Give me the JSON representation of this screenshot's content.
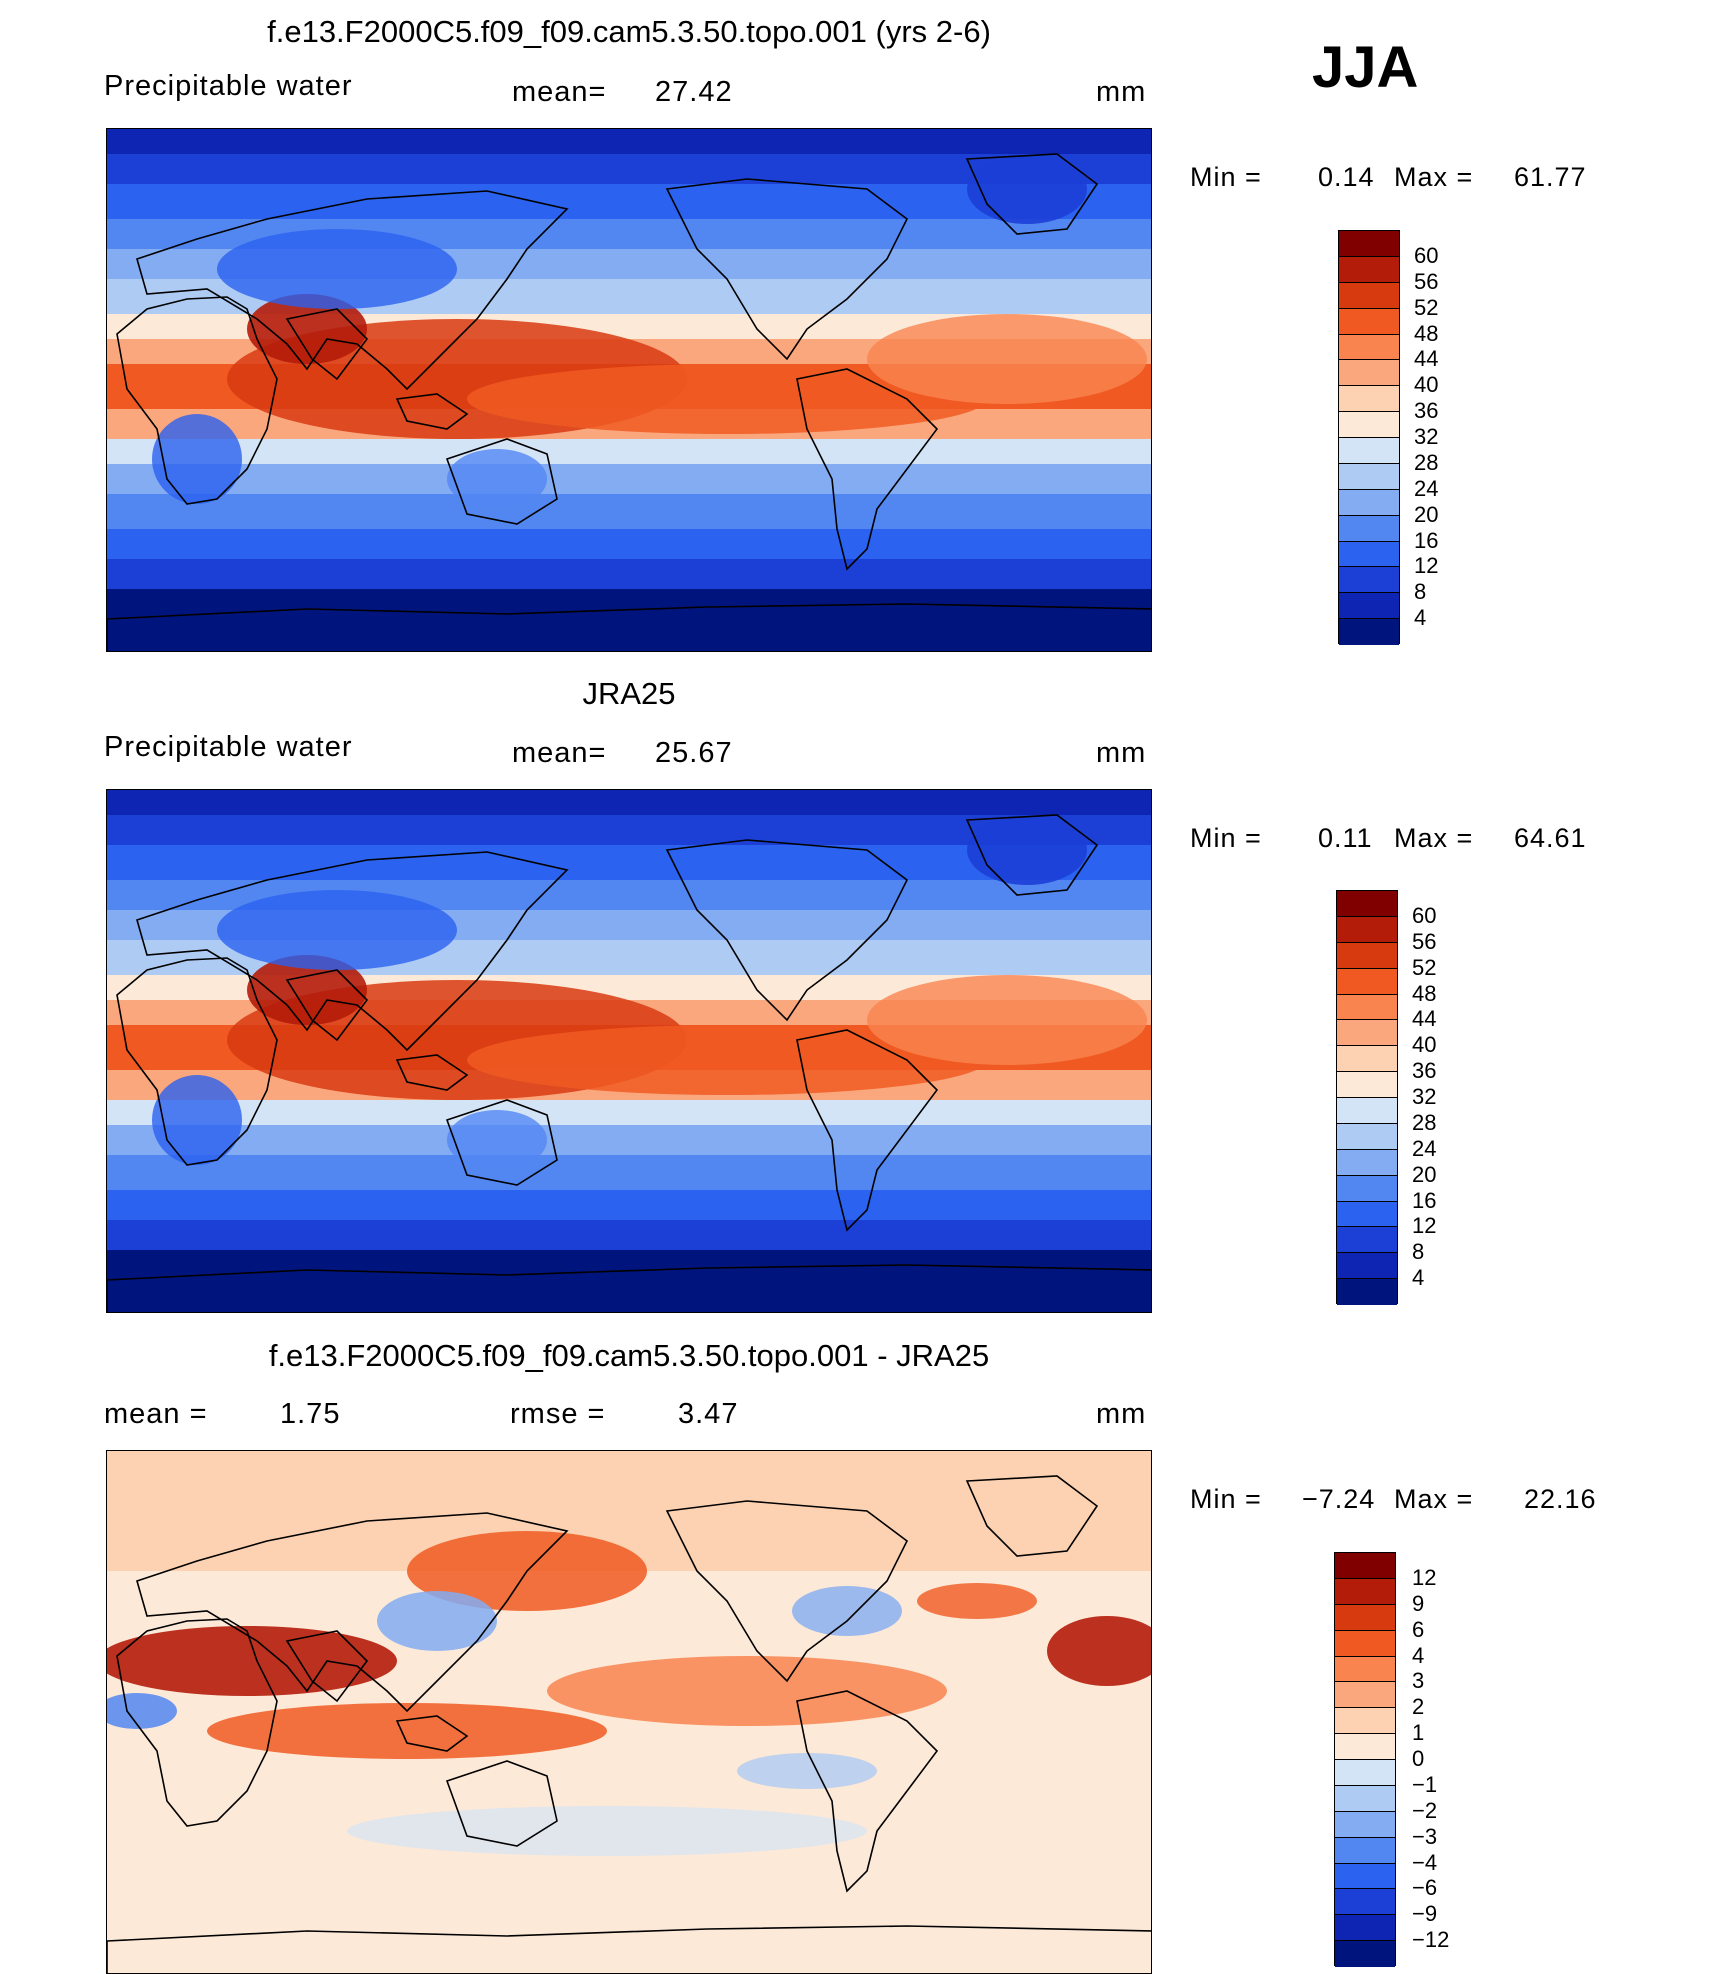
{
  "season": "JJA",
  "panels": [
    {
      "title": "f.e13.F2000C5.f09_f09.cam5.3.50.topo.001 (yrs 2-6)",
      "left_text": "Precipitable  water",
      "center_label": "mean=",
      "center_value": "27.42",
      "units": "mm",
      "min_label": "Min  =",
      "min_value": "0.14",
      "max_label": "Max  =",
      "max_value": "61.77",
      "colorbar": {
        "labels": [
          "60",
          "56",
          "52",
          "48",
          "44",
          "40",
          "36",
          "32",
          "28",
          "24",
          "20",
          "16",
          "12",
          "8",
          "4"
        ],
        "colors": [
          "#800000",
          "#b41c0a",
          "#d83a10",
          "#f05a22",
          "#f98450",
          "#fba77e",
          "#fdd2b2",
          "#fde9d7",
          "#d4e4f7",
          "#aecbf4",
          "#83acf2",
          "#5287f2",
          "#2b62ef",
          "#1c3fd6",
          "#0e24b2",
          "#00147e"
        ]
      },
      "map_palette": "abs"
    },
    {
      "title": "JRA25",
      "left_text": "Precipitable  water",
      "center_label": "mean=",
      "center_value": "25.67",
      "units": "mm",
      "min_label": "Min  =",
      "min_value": "0.11",
      "max_label": "Max  =",
      "max_value": "64.61",
      "colorbar": {
        "labels": [
          "60",
          "56",
          "52",
          "48",
          "44",
          "40",
          "36",
          "32",
          "28",
          "24",
          "20",
          "16",
          "12",
          "8",
          "4"
        ],
        "colors": [
          "#800000",
          "#b41c0a",
          "#d83a10",
          "#f05a22",
          "#f98450",
          "#fba77e",
          "#fdd2b2",
          "#fde9d7",
          "#d4e4f7",
          "#aecbf4",
          "#83acf2",
          "#5287f2",
          "#2b62ef",
          "#1c3fd6",
          "#0e24b2",
          "#00147e"
        ]
      },
      "map_palette": "abs"
    },
    {
      "title": "f.e13.F2000C5.f09_f09.cam5.3.50.topo.001 - JRA25",
      "left_label": "mean  =",
      "left_value": "1.75",
      "center_label": "rmse  =",
      "center_value": "3.47",
      "units": "mm",
      "min_label": "Min  =",
      "min_value": "−7.24",
      "max_label": "Max  =",
      "max_value": "22.16",
      "colorbar": {
        "labels": [
          "12",
          "9",
          "6",
          "4",
          "3",
          "2",
          "1",
          "0",
          "−1",
          "−2",
          "−3",
          "−4",
          "−6",
          "−9",
          "−12"
        ],
        "colors": [
          "#800000",
          "#b41c0a",
          "#d83a10",
          "#f05a22",
          "#f98450",
          "#fba77e",
          "#fdd2b2",
          "#fde9d7",
          "#d4e4f7",
          "#aecbf4",
          "#83acf2",
          "#5287f2",
          "#2b62ef",
          "#1c3fd6",
          "#0e24b2",
          "#00147e"
        ]
      },
      "map_palette": "diff"
    }
  ]
}
